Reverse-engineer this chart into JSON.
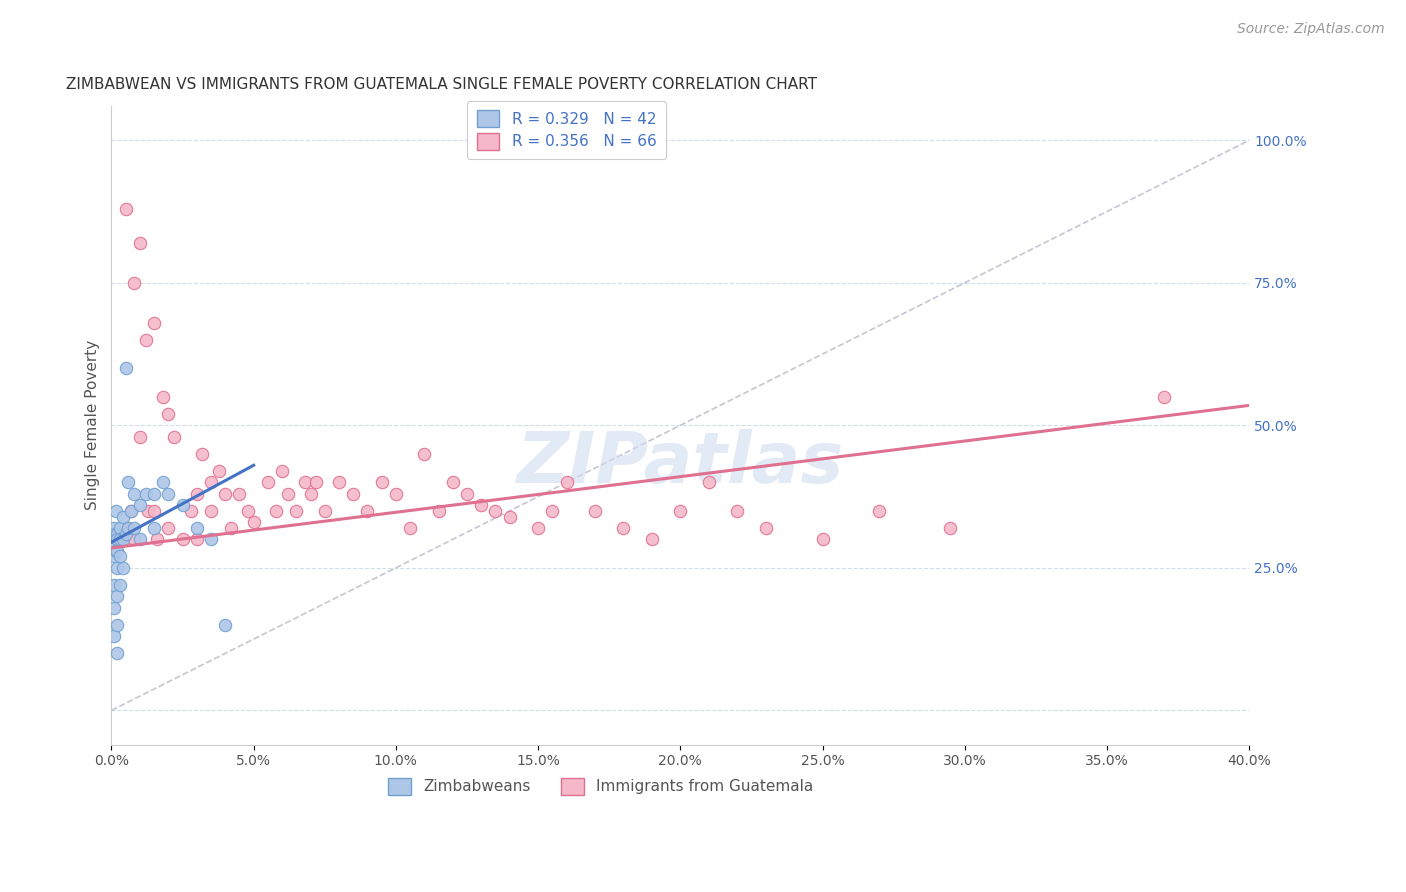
{
  "title": "ZIMBABWEAN VS IMMIGRANTS FROM GUATEMALA SINGLE FEMALE POVERTY CORRELATION CHART",
  "source": "Source: ZipAtlas.com",
  "ylabel": "Single Female Poverty",
  "ylabel_right_ticks": [
    0.0,
    0.25,
    0.5,
    0.75,
    1.0
  ],
  "ylabel_right_labels": [
    "",
    "25.0%",
    "50.0%",
    "75.0%",
    "100.0%"
  ],
  "xmin": 0.0,
  "xmax": 0.4,
  "ymin": -0.06,
  "ymax": 1.06,
  "watermark": "ZIPatlas",
  "zim_color": "#aec6e8",
  "zim_edge_color": "#6fa0d0",
  "guat_color": "#f4b8c8",
  "guat_edge_color": "#e07090",
  "blue_line_color": "#4472c4",
  "pink_line_color": "#e07090",
  "diag_line_color": "#b8b8c8",
  "grid_color": "#d4dce8",
  "background_color": "#ffffff",
  "title_fontsize": 11,
  "axis_label_fontsize": 11,
  "tick_fontsize": 10,
  "source_fontsize": 10,
  "legend_fontsize": 11,
  "scatter_size": 80,
  "zim_x": [
    0.0005,
    0.0008,
    0.001,
    0.001,
    0.001,
    0.001,
    0.001,
    0.0012,
    0.0015,
    0.0015,
    0.002,
    0.002,
    0.002,
    0.002,
    0.002,
    0.002,
    0.002,
    0.003,
    0.003,
    0.003,
    0.003,
    0.004,
    0.004,
    0.004,
    0.005,
    0.005,
    0.006,
    0.006,
    0.007,
    0.008,
    0.008,
    0.01,
    0.01,
    0.012,
    0.015,
    0.015,
    0.018,
    0.02,
    0.025,
    0.03,
    0.035,
    0.04
  ],
  "zim_y": [
    0.3,
    0.29,
    0.32,
    0.27,
    0.22,
    0.18,
    0.13,
    0.31,
    0.35,
    0.28,
    0.31,
    0.3,
    0.28,
    0.25,
    0.2,
    0.15,
    0.1,
    0.32,
    0.3,
    0.27,
    0.22,
    0.34,
    0.3,
    0.25,
    0.6,
    0.31,
    0.4,
    0.32,
    0.35,
    0.38,
    0.32,
    0.36,
    0.3,
    0.38,
    0.38,
    0.32,
    0.4,
    0.38,
    0.36,
    0.32,
    0.3,
    0.15
  ],
  "guat_x": [
    0.003,
    0.005,
    0.006,
    0.007,
    0.008,
    0.008,
    0.01,
    0.01,
    0.012,
    0.013,
    0.015,
    0.015,
    0.016,
    0.018,
    0.02,
    0.02,
    0.022,
    0.025,
    0.028,
    0.03,
    0.03,
    0.032,
    0.035,
    0.035,
    0.038,
    0.04,
    0.042,
    0.045,
    0.048,
    0.05,
    0.055,
    0.058,
    0.06,
    0.062,
    0.065,
    0.068,
    0.07,
    0.072,
    0.075,
    0.08,
    0.085,
    0.09,
    0.095,
    0.1,
    0.105,
    0.11,
    0.115,
    0.12,
    0.125,
    0.13,
    0.135,
    0.14,
    0.15,
    0.155,
    0.16,
    0.17,
    0.18,
    0.19,
    0.2,
    0.21,
    0.22,
    0.23,
    0.25,
    0.27,
    0.295,
    0.37
  ],
  "guat_y": [
    0.3,
    0.88,
    0.32,
    0.35,
    0.75,
    0.3,
    0.48,
    0.82,
    0.65,
    0.35,
    0.68,
    0.35,
    0.3,
    0.55,
    0.52,
    0.32,
    0.48,
    0.3,
    0.35,
    0.38,
    0.3,
    0.45,
    0.4,
    0.35,
    0.42,
    0.38,
    0.32,
    0.38,
    0.35,
    0.33,
    0.4,
    0.35,
    0.42,
    0.38,
    0.35,
    0.4,
    0.38,
    0.4,
    0.35,
    0.4,
    0.38,
    0.35,
    0.4,
    0.38,
    0.32,
    0.45,
    0.35,
    0.4,
    0.38,
    0.36,
    0.35,
    0.34,
    0.32,
    0.35,
    0.4,
    0.35,
    0.32,
    0.3,
    0.35,
    0.4,
    0.35,
    0.32,
    0.3,
    0.35,
    0.32,
    0.55
  ],
  "blue_line_x": [
    0.0,
    0.05
  ],
  "blue_line_y": [
    0.295,
    0.43
  ],
  "pink_line_x": [
    0.0,
    0.4
  ],
  "pink_line_y": [
    0.285,
    0.535
  ],
  "diag_line_x": [
    0.0,
    0.4
  ],
  "diag_line_y": [
    0.0,
    1.0
  ]
}
